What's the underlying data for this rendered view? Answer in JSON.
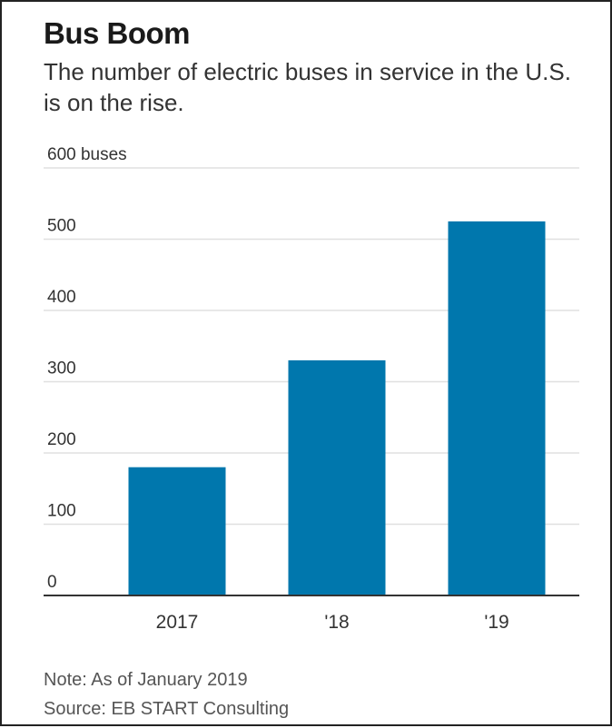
{
  "title": "Bus Boom",
  "subtitle": "The number of electric buses in service in the U.S. is on the rise.",
  "note": "Note: As of January 2019",
  "source": "Source: EB START Consulting",
  "colors": {
    "bar": "#0077ad",
    "grid": "#e0e0e0",
    "baseline": "#333333",
    "text": "#333333"
  },
  "chart_data": {
    "type": "bar",
    "categories": [
      "2017",
      "'18",
      "'19"
    ],
    "values": [
      180,
      330,
      525
    ],
    "ylim": [
      0,
      600
    ],
    "yticks": [
      0,
      100,
      200,
      300,
      400,
      500,
      600
    ],
    "ytick_labels": [
      "0",
      "100",
      "200",
      "300",
      "400",
      "500",
      "600 buses"
    ],
    "title": "Bus Boom",
    "xlabel": "",
    "ylabel": "",
    "grid": true,
    "legend": "none"
  }
}
